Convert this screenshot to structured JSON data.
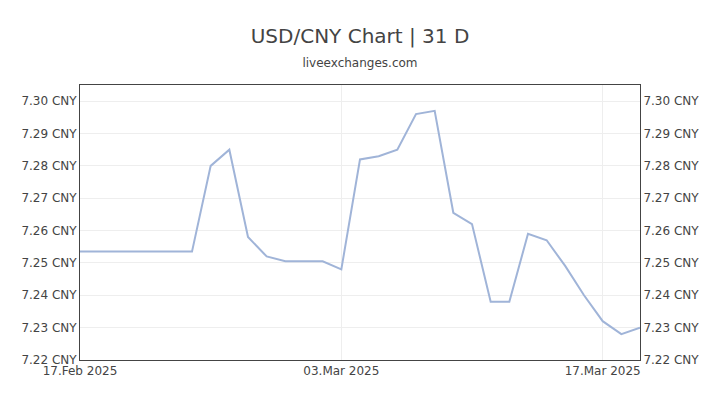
{
  "chart_data": {
    "type": "line",
    "title": "USD/CNY Chart | 31 D",
    "subtitle": "liveexchanges.com",
    "color": "#a0b4d8",
    "x": [
      0,
      1,
      2,
      3,
      4,
      5,
      6,
      7,
      8,
      9,
      10,
      11,
      12,
      13,
      14,
      15,
      16,
      17,
      18,
      19,
      20,
      21,
      22,
      23,
      24,
      25,
      26,
      27,
      28,
      29,
      30
    ],
    "values": [
      7.2535,
      7.2535,
      7.2535,
      7.2535,
      7.2535,
      7.2535,
      7.2535,
      7.28,
      7.285,
      7.258,
      7.252,
      7.2505,
      7.2505,
      7.2505,
      7.248,
      7.282,
      7.283,
      7.285,
      7.296,
      7.297,
      7.2655,
      7.262,
      7.238,
      7.238,
      7.259,
      7.257,
      7.249,
      7.24,
      7.232,
      7.228,
      7.23
    ],
    "xlim": [
      0,
      30
    ],
    "xticks": [
      {
        "value": 0,
        "label": "17.Feb 2025"
      },
      {
        "value": 14,
        "label": "03.Mar 2025"
      },
      {
        "value": 28,
        "label": "17.Mar 2025"
      }
    ],
    "ylim": [
      7.22,
      7.305
    ],
    "yticks": [
      {
        "value": 7.22,
        "label": "7.22 CNY"
      },
      {
        "value": 7.23,
        "label": "7.23 CNY"
      },
      {
        "value": 7.24,
        "label": "7.24 CNY"
      },
      {
        "value": 7.25,
        "label": "7.25 CNY"
      },
      {
        "value": 7.26,
        "label": "7.26 CNY"
      },
      {
        "value": 7.27,
        "label": "7.27 CNY"
      },
      {
        "value": 7.28,
        "label": "7.28 CNY"
      },
      {
        "value": 7.29,
        "label": "7.29 CNY"
      },
      {
        "value": 7.3,
        "label": "7.30 CNY"
      }
    ],
    "y2lim": [
      7.22,
      7.305
    ],
    "y2ticks": [
      {
        "value": 7.22,
        "label": "7.22 CNY"
      },
      {
        "value": 7.23,
        "label": "7.23 CNY"
      },
      {
        "value": 7.24,
        "label": "7.24 CNY"
      },
      {
        "value": 7.25,
        "label": "7.25 CNY"
      },
      {
        "value": 7.26,
        "label": "7.26 CNY"
      },
      {
        "value": 7.27,
        "label": "7.27 CNY"
      },
      {
        "value": 7.28,
        "label": "7.28 CNY"
      },
      {
        "value": 7.29,
        "label": "7.29 CNY"
      },
      {
        "value": 7.3,
        "label": "7.30 CNY"
      }
    ],
    "grid": true
  }
}
